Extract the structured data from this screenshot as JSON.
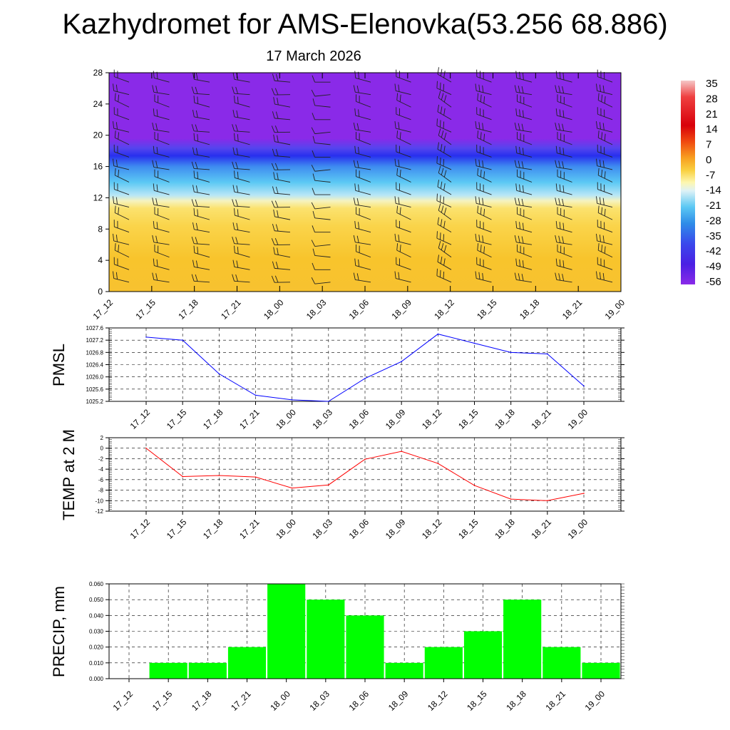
{
  "title": "Kazhydromet for AMS-Elenovka(53.256 68.886)",
  "subtitle": "17 March 2026",
  "time_labels": [
    "17_12",
    "17_15",
    "17_18",
    "17_21",
    "18_00",
    "18_03",
    "18_06",
    "18_09",
    "18_12",
    "18_15",
    "18_18",
    "18_21",
    "19_00"
  ],
  "colors": {
    "pmsl_line": "#0000ff",
    "temp_line": "#ff0000",
    "precip_bar": "#00ff00",
    "upper_air": "#8a2ae8",
    "surface_warm": "#f9c12c"
  },
  "chart_data": [
    {
      "type": "heatmap",
      "name": "cross-section",
      "description": "Time-height cross section of temperature with wind barbs",
      "x": [
        "17_12",
        "17_15",
        "17_18",
        "17_21",
        "18_00",
        "18_03",
        "18_06",
        "18_09",
        "18_12",
        "18_15",
        "18_18",
        "18_21",
        "19_00"
      ],
      "ylim": [
        0,
        28
      ],
      "yticks": [
        0,
        4,
        8,
        12,
        16,
        20,
        24,
        28
      ],
      "colorbar_ticks": [
        35,
        28,
        21,
        14,
        7,
        0,
        -7,
        -14,
        -21,
        -28,
        -35,
        -42,
        -49,
        -56
      ],
      "barb_direction_deg": [
        290,
        285,
        280,
        280,
        275,
        270,
        285,
        290,
        300,
        290,
        285,
        285,
        290
      ],
      "barb_speed": [
        20,
        20,
        20,
        20,
        15,
        10,
        15,
        20,
        25,
        25,
        25,
        25,
        25
      ]
    },
    {
      "type": "line",
      "name": "pmsl",
      "ylabel": "PMSL",
      "x": [
        "17_12",
        "17_15",
        "17_18",
        "17_21",
        "18_00",
        "18_03",
        "18_06",
        "18_09",
        "18_12",
        "18_15",
        "18_18",
        "18_21",
        "19_00"
      ],
      "values": [
        1027.3,
        1027.2,
        1026.1,
        1025.4,
        1025.25,
        1025.2,
        1025.95,
        1026.5,
        1027.4,
        1027.1,
        1026.8,
        1026.75,
        1025.7
      ],
      "ylim": [
        1025.2,
        1027.6
      ],
      "yticks": [
        1025.2,
        1025.6,
        1026.0,
        1026.4,
        1026.8,
        1027.2,
        1027.6
      ],
      "ytick_labels": [
        "1025.2",
        "1025.6",
        "1026.0",
        "1026.4",
        "1026.8",
        "1027.2",
        "1027.6"
      ]
    },
    {
      "type": "line",
      "name": "temp",
      "ylabel": "TEMP at 2 M",
      "x": [
        "17_12",
        "17_15",
        "17_18",
        "17_21",
        "18_00",
        "18_03",
        "18_06",
        "18_09",
        "18_12",
        "18_15",
        "18_18",
        "18_21",
        "19_00"
      ],
      "values": [
        0,
        -5.4,
        -5.2,
        -5.5,
        -7.6,
        -7.0,
        -2.1,
        -0.6,
        -2.9,
        -7.1,
        -9.7,
        -10.0,
        -8.6
      ],
      "ylim": [
        -12,
        2
      ],
      "yticks": [
        2,
        0,
        -2,
        -4,
        -6,
        -8,
        -10,
        -12
      ],
      "ytick_labels": [
        "2",
        "0",
        "-2",
        "-4",
        "-6",
        "-8",
        "-10",
        "-12"
      ]
    },
    {
      "type": "bar",
      "name": "precip",
      "ylabel": "PRECIP, mm",
      "categories": [
        "17_12",
        "17_15",
        "17_18",
        "17_21",
        "18_00",
        "18_03",
        "18_06",
        "18_09",
        "18_12",
        "18_15",
        "18_18",
        "18_21",
        "19_00"
      ],
      "values": [
        0,
        0.01,
        0.01,
        0.02,
        0.06,
        0.05,
        0.04,
        0.01,
        0.02,
        0.03,
        0.05,
        0.02,
        0.01
      ],
      "ylim": [
        0,
        0.06
      ],
      "yticks": [
        0,
        0.01,
        0.02,
        0.03,
        0.04,
        0.05,
        0.06
      ],
      "ytick_labels": [
        "0.000",
        "0.010",
        "0.020",
        "0.030",
        "0.040",
        "0.050",
        "0.060"
      ]
    }
  ]
}
